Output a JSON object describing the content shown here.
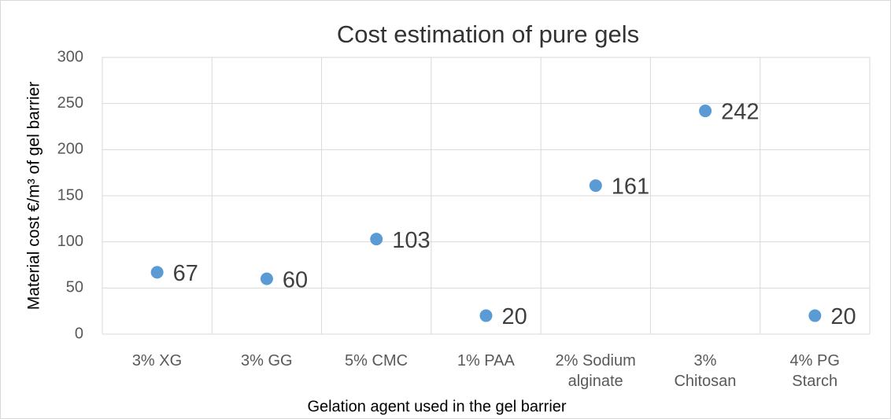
{
  "chart_data": {
    "type": "scatter",
    "title": "Cost estimation of pure gels",
    "x_label": "Gelation agent used in the gel barrier",
    "y_label": "Material cost €/m³ of gel barrier",
    "categories": [
      "3% XG",
      "3% GG",
      "5% CMC",
      "1% PAA",
      "2% Sodium\nalginate",
      "3%\nChitosan",
      "4% PG\nStarch"
    ],
    "values": [
      67,
      60,
      103,
      20,
      161,
      242,
      20
    ],
    "color": "#5b9bd5",
    "ylim": [
      0,
      300
    ],
    "yticks": [
      0,
      50,
      100,
      150,
      200,
      250,
      300
    ],
    "grid": true
  }
}
